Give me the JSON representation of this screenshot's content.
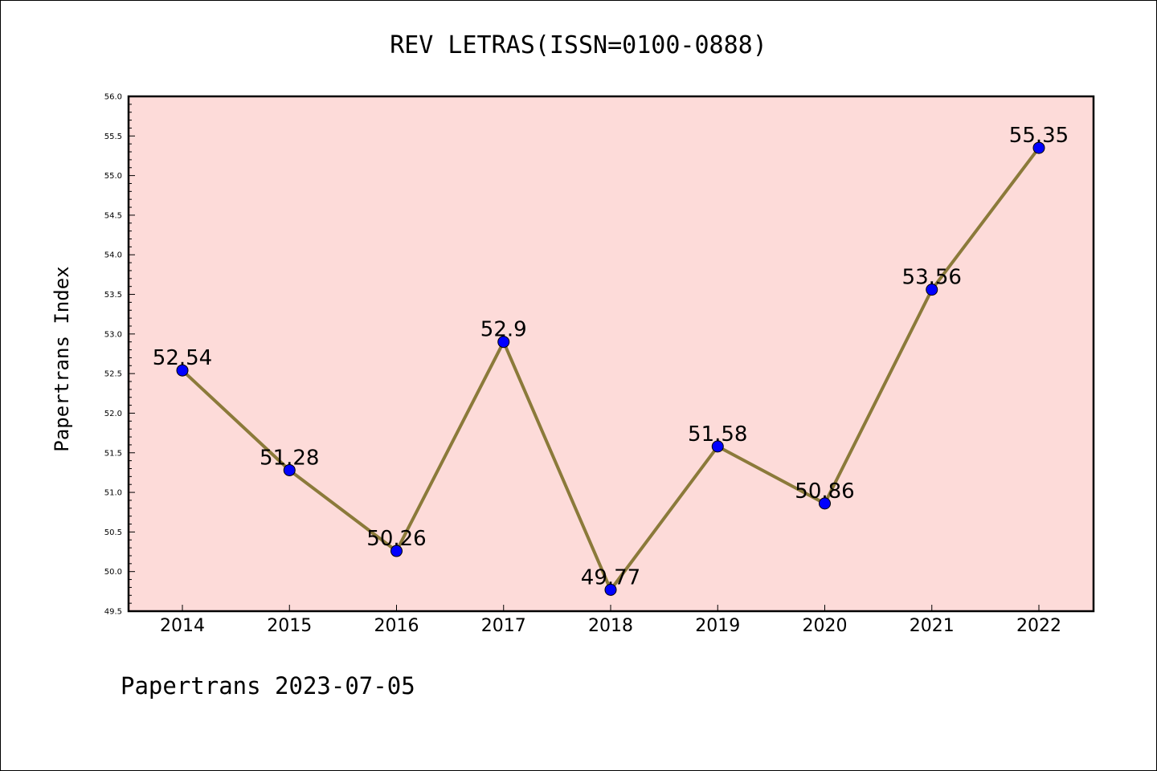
{
  "chart_data": {
    "type": "line",
    "title": "REV LETRAS(ISSN=0100-0888)",
    "ylabel": "Papertrans Index",
    "xlabel": "",
    "categories": [
      "2014",
      "2015",
      "2016",
      "2017",
      "2018",
      "2019",
      "2020",
      "2021",
      "2022"
    ],
    "values": [
      52.54,
      51.28,
      50.26,
      52.9,
      49.77,
      51.58,
      50.86,
      53.56,
      55.35
    ],
    "data_labels": [
      "52.54",
      "51.28",
      "50.26",
      "52.9",
      "49.77",
      "51.58",
      "50.86",
      "53.56",
      "55.35"
    ],
    "ylim": [
      49.5,
      56.0
    ],
    "yticks": [
      "49.5",
      "50.0",
      "50.5",
      "51.0",
      "51.5",
      "52.0",
      "52.5",
      "53.0",
      "53.5",
      "54.0",
      "54.5",
      "55.0",
      "55.5",
      "56.0"
    ],
    "grid": false,
    "legend": "none",
    "colors": {
      "plot_background": "#fddbd9",
      "line": "#8b7a3a",
      "marker": "#0000ff"
    }
  },
  "footer": "Papertrans 2023-07-05"
}
